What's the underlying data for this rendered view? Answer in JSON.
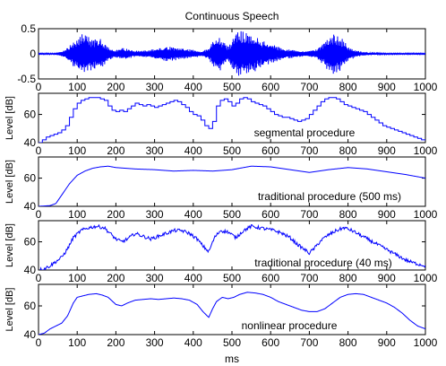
{
  "chart_data": {
    "type": "line",
    "title": "Continuous Speech",
    "xlabel": "ms",
    "line_color": "#0000ff",
    "panels": [
      {
        "id": "waveform",
        "ylabel": "",
        "annotation": "",
        "xlim": [
          0,
          1000
        ],
        "ylim": [
          -0.5,
          0.5
        ],
        "xticks": [
          0,
          100,
          200,
          300,
          400,
          500,
          600,
          700,
          800,
          900,
          1000
        ],
        "yticks": [
          -0.5,
          0,
          0.5
        ],
        "ytick_labels": [
          "-0.5",
          "0",
          "0.5"
        ],
        "envelope": {
          "x": [
            0,
            40,
            60,
            70,
            90,
            110,
            120,
            130,
            140,
            150,
            160,
            175,
            190,
            200,
            215,
            230,
            250,
            270,
            290,
            310,
            330,
            350,
            370,
            390,
            410,
            420,
            440,
            455,
            470,
            480,
            490,
            500,
            510,
            520,
            530,
            545,
            560,
            575,
            590,
            605,
            620,
            640,
            660,
            690,
            700,
            720,
            740,
            750,
            760,
            770,
            780,
            790,
            800,
            820,
            840,
            860,
            900,
            1000
          ],
          "y": [
            0.01,
            0.01,
            0.05,
            0.1,
            0.26,
            0.38,
            0.42,
            0.36,
            0.35,
            0.3,
            0.3,
            0.2,
            0.1,
            0.08,
            0.12,
            0.1,
            0.06,
            0.07,
            0.08,
            0.12,
            0.15,
            0.14,
            0.12,
            0.1,
            0.07,
            0.04,
            0.12,
            0.3,
            0.34,
            0.26,
            0.15,
            0.3,
            0.42,
            0.48,
            0.45,
            0.4,
            0.36,
            0.3,
            0.25,
            0.2,
            0.15,
            0.1,
            0.08,
            0.05,
            0.06,
            0.1,
            0.26,
            0.36,
            0.42,
            0.4,
            0.35,
            0.26,
            0.14,
            0.07,
            0.04,
            0.02,
            0.01,
            0.01
          ]
        }
      },
      {
        "id": "segmental",
        "ylabel": "Level [dB]",
        "annotation": "segmental procedure",
        "xlim": [
          0,
          1000
        ],
        "ylim": [
          40,
          75
        ],
        "xticks": [
          0,
          100,
          200,
          300,
          400,
          500,
          600,
          700,
          800,
          900,
          1000
        ],
        "yticks": [
          40,
          60
        ],
        "ytick_labels": [
          "40",
          "60"
        ],
        "step": true,
        "x": [
          0,
          10,
          20,
          30,
          40,
          50,
          60,
          70,
          80,
          90,
          100,
          110,
          120,
          130,
          140,
          150,
          160,
          170,
          180,
          190,
          200,
          210,
          220,
          230,
          240,
          250,
          260,
          270,
          280,
          290,
          300,
          310,
          320,
          330,
          340,
          350,
          360,
          370,
          380,
          390,
          400,
          410,
          420,
          430,
          440,
          450,
          460,
          470,
          480,
          490,
          500,
          510,
          520,
          530,
          540,
          550,
          560,
          570,
          580,
          590,
          600,
          610,
          620,
          630,
          640,
          650,
          660,
          670,
          680,
          690,
          700,
          710,
          720,
          730,
          740,
          750,
          760,
          770,
          780,
          790,
          800,
          810,
          820,
          830,
          840,
          850,
          860,
          870,
          880,
          890,
          900,
          910,
          920,
          930,
          940,
          950,
          960,
          970,
          980,
          990,
          1000
        ],
        "y": [
          40,
          42,
          44,
          45,
          46,
          47,
          49,
          52,
          58,
          64,
          68,
          70,
          71,
          72,
          72,
          72,
          71,
          70,
          66,
          63,
          62,
          63,
          62,
          64,
          66,
          68,
          67,
          66,
          67,
          66,
          65,
          66,
          67,
          68,
          69,
          70,
          69,
          67,
          65,
          62,
          60,
          59,
          56,
          52,
          50,
          55,
          66,
          70,
          71,
          69,
          66,
          68,
          71,
          72,
          71,
          69,
          68,
          67,
          66,
          64,
          62,
          60,
          59,
          58,
          58,
          57,
          56,
          55,
          56,
          57,
          60,
          63,
          66,
          69,
          71,
          72,
          72,
          71,
          69,
          67,
          66,
          65,
          64,
          63,
          62,
          60,
          58,
          56,
          54,
          52,
          51,
          50,
          49,
          48,
          47,
          46,
          45,
          44,
          43,
          42,
          42
        ]
      },
      {
        "id": "traditional-500",
        "ylabel": "Level [dB]",
        "annotation": "traditional procedure (500 ms)",
        "xlim": [
          0,
          1000
        ],
        "ylim": [
          40,
          75
        ],
        "xticks": [
          0,
          100,
          200,
          300,
          400,
          500,
          600,
          700,
          800,
          900,
          1000
        ],
        "yticks": [
          40,
          60
        ],
        "ytick_labels": [
          "40",
          "60"
        ],
        "x": [
          0,
          30,
          45,
          60,
          80,
          100,
          120,
          140,
          160,
          180,
          200,
          250,
          300,
          350,
          400,
          450,
          500,
          550,
          600,
          650,
          700,
          750,
          800,
          850,
          900,
          950,
          1000
        ],
        "y": [
          40,
          40.5,
          42,
          48,
          56,
          62,
          65,
          67,
          68,
          68.5,
          67.5,
          66.5,
          66,
          65,
          65.5,
          65,
          66,
          68.5,
          68,
          66,
          64,
          66,
          67.5,
          66.5,
          64.5,
          62.5,
          60
        ]
      },
      {
        "id": "traditional-40",
        "ylabel": "Level [dB]",
        "annotation": "traditional procedure (40 ms)",
        "xlim": [
          0,
          1000
        ],
        "ylim": [
          40,
          75
        ],
        "xticks": [
          0,
          100,
          200,
          300,
          400,
          500,
          600,
          700,
          800,
          900,
          1000
        ],
        "yticks": [
          40,
          60
        ],
        "ytick_labels": [
          "40",
          "60"
        ],
        "noisy": true,
        "x": [
          0,
          15,
          30,
          45,
          60,
          75,
          90,
          110,
          130,
          150,
          170,
          185,
          200,
          215,
          230,
          250,
          270,
          290,
          310,
          330,
          350,
          370,
          390,
          410,
          425,
          440,
          455,
          470,
          490,
          510,
          530,
          550,
          570,
          590,
          610,
          630,
          650,
          670,
          690,
          700,
          715,
          730,
          750,
          770,
          790,
          810,
          830,
          850,
          870,
          890,
          910,
          930,
          950,
          970,
          1000
        ],
        "y": [
          40,
          41,
          43,
          46,
          49,
          55,
          63,
          68,
          70,
          71,
          70,
          66,
          62,
          60,
          62,
          66,
          64,
          62,
          64,
          66,
          68,
          68,
          66,
          62,
          57,
          53,
          63,
          68,
          67,
          63,
          68,
          71,
          70,
          69,
          68,
          66,
          63,
          58,
          54,
          52,
          56,
          61,
          65,
          68,
          70,
          68,
          65,
          62,
          59,
          56,
          53,
          50,
          47,
          45,
          43
        ]
      },
      {
        "id": "nonlinear",
        "ylabel": "Level [dB]",
        "annotation": "nonlinear procedure",
        "xlim": [
          0,
          1000
        ],
        "ylim": [
          40,
          75
        ],
        "xticks": [
          0,
          100,
          200,
          300,
          400,
          500,
          600,
          700,
          800,
          900,
          1000
        ],
        "yticks": [
          40,
          60
        ],
        "ytick_labels": [
          "40",
          "60"
        ],
        "x": [
          0,
          15,
          30,
          45,
          60,
          75,
          90,
          100,
          115,
          130,
          150,
          165,
          180,
          200,
          215,
          230,
          250,
          270,
          290,
          310,
          330,
          350,
          370,
          390,
          410,
          425,
          440,
          450,
          460,
          475,
          490,
          505,
          520,
          540,
          560,
          580,
          600,
          620,
          640,
          660,
          680,
          700,
          720,
          740,
          760,
          780,
          800,
          820,
          840,
          860,
          880,
          900,
          920,
          940,
          960,
          980,
          1000
        ],
        "y": [
          40,
          41,
          44,
          46,
          48,
          53,
          62,
          66,
          67,
          68,
          68.5,
          67.5,
          66,
          61,
          60,
          62,
          64,
          64.5,
          65,
          64.5,
          65,
          65.5,
          65,
          64,
          61,
          56,
          52,
          58,
          63,
          66,
          65,
          66,
          68,
          69.5,
          69,
          68,
          66,
          63,
          61,
          59,
          57,
          56,
          56,
          58,
          62,
          66,
          68,
          68.5,
          68,
          66,
          64,
          62,
          59,
          55,
          50,
          46,
          44
        ]
      }
    ]
  }
}
